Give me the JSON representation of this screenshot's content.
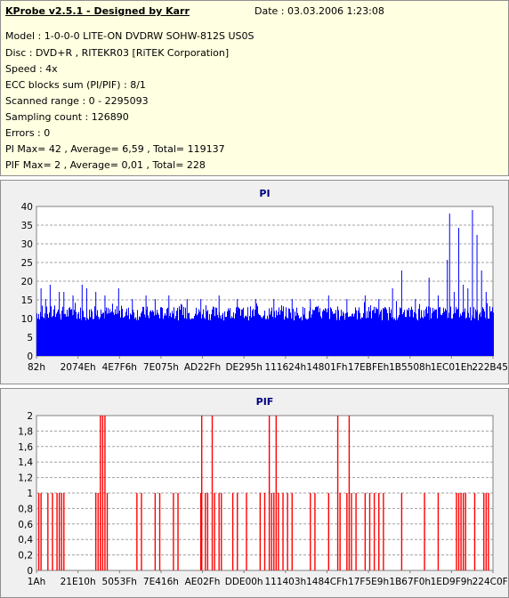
{
  "info": {
    "title": "KProbe v2.5.1 - Designed by Karr",
    "date": "Date : 03.03.2006 1:23:08",
    "lines": [
      "Model : 1-0-0-0 LITE-ON DVDRW SOHW-812S  US0S",
      "Disc : DVD+R , RITEKR03 [RiTEK Corporation]",
      "Speed : 4x",
      "ECC blocks sum (PI/PIF) : 8/1",
      "Scanned range : 0 - 2295093",
      "Sampling count : 126890",
      "Errors : 0",
      "PI Max= 42 , Average= 6,59 , Total= 119137",
      "PIF Max= 2 , Average= 0,01 , Total= 228"
    ]
  },
  "colors": {
    "pi": "#0000ff",
    "pif": "#ff0000",
    "panel": "#f0f0f0",
    "info_bg": "#ffffe1"
  },
  "chart_data": [
    {
      "type": "bar",
      "title": "PI",
      "ylim": [
        0,
        42
      ],
      "y_ticks": [
        "0",
        "5",
        "10",
        "15",
        "20",
        "25",
        "30",
        "35",
        "40"
      ],
      "x_tick_labels": [
        "82h",
        "2074Eh",
        "4E7F6h",
        "7E075h",
        "AD22Fh",
        "DE295h",
        "111624h",
        "14801Fh",
        "17EBFEh",
        "1B5508h",
        "1EC01Eh",
        "222B45h"
      ],
      "grid": true,
      "baseline": 11,
      "spikes": [
        [
          0.01,
          19
        ],
        [
          0.02,
          16
        ],
        [
          0.03,
          20
        ],
        [
          0.05,
          18
        ],
        [
          0.06,
          18
        ],
        [
          0.08,
          17
        ],
        [
          0.1,
          20
        ],
        [
          0.11,
          19
        ],
        [
          0.13,
          18
        ],
        [
          0.15,
          17
        ],
        [
          0.18,
          19
        ],
        [
          0.21,
          16
        ],
        [
          0.24,
          17
        ],
        [
          0.26,
          16
        ],
        [
          0.29,
          17
        ],
        [
          0.33,
          16
        ],
        [
          0.36,
          16
        ],
        [
          0.4,
          17
        ],
        [
          0.44,
          16
        ],
        [
          0.48,
          16
        ],
        [
          0.52,
          16
        ],
        [
          0.56,
          16
        ],
        [
          0.6,
          16
        ],
        [
          0.64,
          17
        ],
        [
          0.68,
          16
        ],
        [
          0.72,
          17
        ],
        [
          0.75,
          16
        ],
        [
          0.78,
          19
        ],
        [
          0.8,
          24
        ],
        [
          0.83,
          16
        ],
        [
          0.86,
          22
        ],
        [
          0.88,
          17
        ],
        [
          0.9,
          27
        ],
        [
          0.905,
          40
        ],
        [
          0.915,
          18
        ],
        [
          0.925,
          36
        ],
        [
          0.935,
          20
        ],
        [
          0.945,
          19
        ],
        [
          0.955,
          41
        ],
        [
          0.965,
          34
        ],
        [
          0.975,
          24
        ],
        [
          0.985,
          18
        ]
      ]
    },
    {
      "type": "bar",
      "title": "PIF",
      "ylim": [
        0,
        2
      ],
      "y_ticks": [
        "0",
        "0,2",
        "0,4",
        "0,6",
        "0,8",
        "1",
        "1,2",
        "1,4",
        "1,6",
        "1,8",
        "2"
      ],
      "x_tick_labels": [
        "1Ah",
        "21E10h",
        "5053Fh",
        "7E416h",
        "AE02Fh",
        "DDE00h",
        "111403h",
        "1484CFh",
        "17F5E9h",
        "1B67F0h",
        "1ED9F9h",
        "224C0Fh"
      ],
      "grid": true,
      "bars": [
        [
          0.005,
          1
        ],
        [
          0.01,
          1
        ],
        [
          0.025,
          1
        ],
        [
          0.035,
          1
        ],
        [
          0.045,
          1
        ],
        [
          0.05,
          1
        ],
        [
          0.055,
          1
        ],
        [
          0.06,
          1
        ],
        [
          0.13,
          1
        ],
        [
          0.135,
          1
        ],
        [
          0.14,
          1
        ],
        [
          0.14,
          2
        ],
        [
          0.145,
          2
        ],
        [
          0.15,
          2
        ],
        [
          0.155,
          1
        ],
        [
          0.22,
          1
        ],
        [
          0.23,
          1
        ],
        [
          0.26,
          1
        ],
        [
          0.27,
          1
        ],
        [
          0.3,
          1
        ],
        [
          0.31,
          1
        ],
        [
          0.36,
          1
        ],
        [
          0.362,
          2
        ],
        [
          0.37,
          1
        ],
        [
          0.375,
          1
        ],
        [
          0.385,
          2
        ],
        [
          0.39,
          1
        ],
        [
          0.4,
          1
        ],
        [
          0.405,
          1
        ],
        [
          0.43,
          1
        ],
        [
          0.44,
          1
        ],
        [
          0.46,
          1
        ],
        [
          0.49,
          1
        ],
        [
          0.5,
          1
        ],
        [
          0.51,
          2
        ],
        [
          0.515,
          1
        ],
        [
          0.52,
          1
        ],
        [
          0.525,
          2
        ],
        [
          0.53,
          1
        ],
        [
          0.54,
          1
        ],
        [
          0.55,
          1
        ],
        [
          0.56,
          1
        ],
        [
          0.6,
          1
        ],
        [
          0.61,
          1
        ],
        [
          0.64,
          1
        ],
        [
          0.66,
          2
        ],
        [
          0.665,
          1
        ],
        [
          0.68,
          1
        ],
        [
          0.685,
          2
        ],
        [
          0.69,
          1
        ],
        [
          0.7,
          1
        ],
        [
          0.72,
          1
        ],
        [
          0.73,
          1
        ],
        [
          0.74,
          1
        ],
        [
          0.75,
          1
        ],
        [
          0.76,
          1
        ],
        [
          0.8,
          1
        ],
        [
          0.85,
          1
        ],
        [
          0.88,
          1
        ],
        [
          0.92,
          1
        ],
        [
          0.925,
          1
        ],
        [
          0.93,
          1
        ],
        [
          0.935,
          1
        ],
        [
          0.94,
          1
        ],
        [
          0.96,
          1
        ],
        [
          0.98,
          1
        ],
        [
          0.985,
          1
        ],
        [
          0.99,
          1
        ]
      ]
    }
  ]
}
